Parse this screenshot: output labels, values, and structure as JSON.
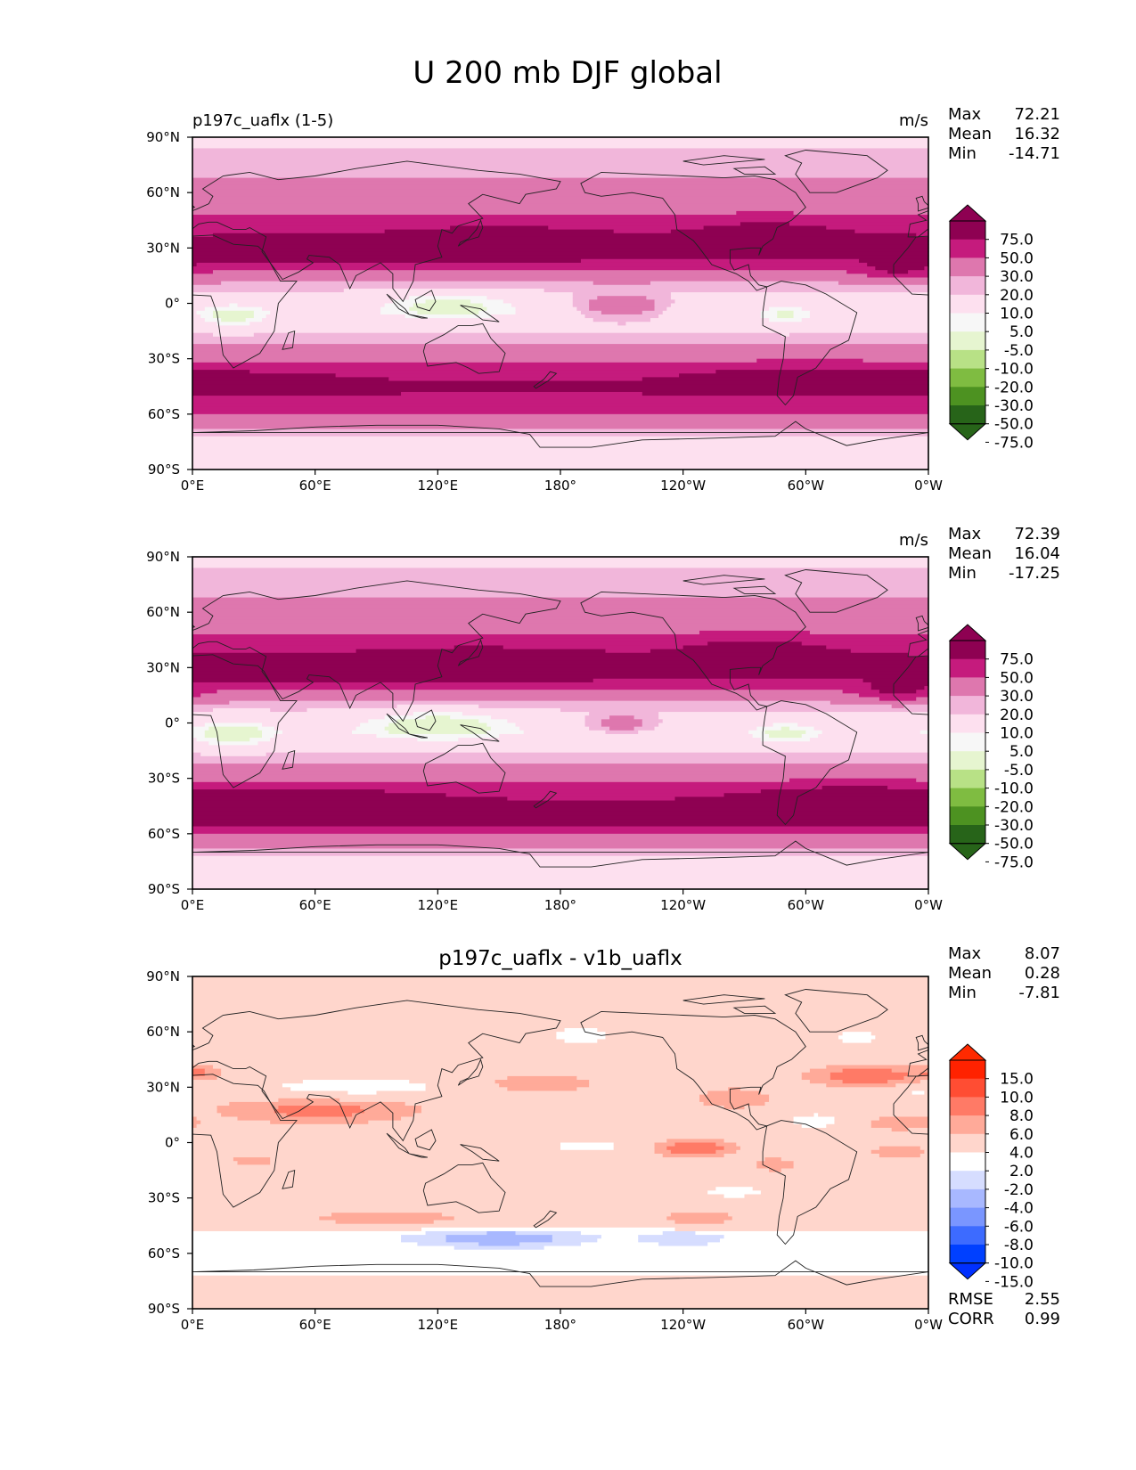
{
  "figure_title": "U 200 mb DJF global",
  "colors": {
    "field": [
      "#276419",
      "#4d9221",
      "#7fbc41",
      "#b8e186",
      "#e6f5d0",
      "#f7f7f7",
      "#fde0ef",
      "#f1b6da",
      "#de77ae",
      "#c51b7d",
      "#8e0152"
    ],
    "field_extend": {
      "under": "#276419",
      "over": "#8e0152"
    },
    "diff": [
      "#0040ff",
      "#3d6bff",
      "#7a96ff",
      "#a8b8ff",
      "#d6ddff",
      "#ffffff",
      "#ffd6cc",
      "#ffaa99",
      "#ff7a66",
      "#ff4d33",
      "#ff2200"
    ],
    "diff_extend": {
      "under": "#0030ff",
      "over": "#ff2a00"
    },
    "coast": "#222222"
  },
  "chart_data": [
    {
      "type": "heatmap",
      "panel": "test",
      "left_title": "p197c_uaflx (1-5)",
      "center_title": "",
      "units": "m/s",
      "stats": [
        {
          "label": "Max",
          "value": "72.21"
        },
        {
          "label": "Mean",
          "value": "16.32"
        },
        {
          "label": "Min",
          "value": "-14.71"
        }
      ],
      "colorbar": {
        "levels": [
          "-75.0",
          "-50.0",
          "-30.0",
          "-20.0",
          "-10.0",
          "-5.0",
          "5.0",
          "10.0",
          "20.0",
          "30.0",
          "50.0",
          "75.0"
        ],
        "level_values": [
          -75,
          -50,
          -30,
          -20,
          -10,
          -5,
          5,
          10,
          20,
          30,
          50,
          75
        ],
        "extend": "both"
      },
      "x_ticks": [
        "0°E",
        "60°E",
        "120°E",
        "180°",
        "120°W",
        "60°W",
        "0°W"
      ],
      "x_tick_values": [
        0,
        60,
        120,
        180,
        240,
        300,
        360
      ],
      "y_ticks": [
        "90°N",
        "60°N",
        "30°N",
        "0°",
        "30°S",
        "60°S",
        "90°S"
      ],
      "y_tick_values": [
        90,
        60,
        30,
        0,
        -30,
        -60,
        -90
      ],
      "xlim": [
        0,
        360
      ],
      "ylim": [
        -90,
        90
      ],
      "zonal_profile": [
        [
          -90,
          2
        ],
        [
          -75,
          3
        ],
        [
          -65,
          12
        ],
        [
          -55,
          26
        ],
        [
          -45,
          32
        ],
        [
          -35,
          22
        ],
        [
          -25,
          12
        ],
        [
          -15,
          4
        ],
        [
          -5,
          -2
        ],
        [
          5,
          3
        ],
        [
          15,
          14
        ],
        [
          25,
          30
        ],
        [
          32,
          36
        ],
        [
          40,
          26
        ],
        [
          50,
          18
        ],
        [
          60,
          12
        ],
        [
          75,
          8
        ],
        [
          90,
          3
        ]
      ],
      "features": [
        {
          "lon": 150,
          "lat": 32,
          "rlon": 48,
          "rlat": 8,
          "amp": 22
        },
        {
          "lon": 50,
          "lat": 27,
          "rlon": 35,
          "rlat": 6,
          "amp": 14
        },
        {
          "lon": 280,
          "lat": 35,
          "rlon": 35,
          "rlat": 9,
          "amp": 16
        },
        {
          "lon": 345,
          "lat": 18,
          "rlon": 20,
          "rlat": 6,
          "amp": 14
        },
        {
          "lon": 210,
          "lat": -2,
          "rlon": 22,
          "rlat": 7,
          "amp": 18
        },
        {
          "lon": 20,
          "lat": -7,
          "rlon": 15,
          "rlat": 6,
          "amp": -14
        },
        {
          "lon": 125,
          "lat": -1,
          "rlon": 30,
          "rlat": 7,
          "amp": -14
        },
        {
          "lon": 290,
          "lat": -7,
          "rlon": 12,
          "rlat": 6,
          "amp": -10
        },
        {
          "lon": 300,
          "lat": -40,
          "rlon": 60,
          "rlat": 7,
          "amp": 12
        },
        {
          "lon": 20,
          "lat": -42,
          "rlon": 60,
          "rlat": 6,
          "amp": 10
        }
      ]
    },
    {
      "type": "heatmap",
      "panel": "reference",
      "left_title": "",
      "center_title": "",
      "units": "m/s",
      "stats": [
        {
          "label": "Max",
          "value": "72.39"
        },
        {
          "label": "Mean",
          "value": "16.04"
        },
        {
          "label": "Min",
          "value": "-17.25"
        }
      ],
      "colorbar": {
        "levels": [
          "-75.0",
          "-50.0",
          "-30.0",
          "-20.0",
          "-10.0",
          "-5.0",
          "5.0",
          "10.0",
          "20.0",
          "30.0",
          "50.0",
          "75.0"
        ],
        "level_values": [
          -75,
          -50,
          -30,
          -20,
          -10,
          -5,
          5,
          10,
          20,
          30,
          50,
          75
        ],
        "extend": "both"
      },
      "x_ticks": [
        "0°E",
        "60°E",
        "120°E",
        "180°",
        "120°W",
        "60°W",
        "0°W"
      ],
      "x_tick_values": [
        0,
        60,
        120,
        180,
        240,
        300,
        360
      ],
      "y_ticks": [
        "90°N",
        "60°N",
        "30°N",
        "0°",
        "30°S",
        "60°S",
        "90°S"
      ],
      "y_tick_values": [
        90,
        60,
        30,
        0,
        -30,
        -60,
        -90
      ],
      "xlim": [
        0,
        360
      ],
      "ylim": [
        -90,
        90
      ],
      "zonal_profile": [
        [
          -90,
          2
        ],
        [
          -75,
          3
        ],
        [
          -65,
          12
        ],
        [
          -55,
          30
        ],
        [
          -45,
          34
        ],
        [
          -35,
          22
        ],
        [
          -25,
          12
        ],
        [
          -15,
          4
        ],
        [
          -5,
          -2
        ],
        [
          5,
          3
        ],
        [
          15,
          14
        ],
        [
          25,
          30
        ],
        [
          32,
          36
        ],
        [
          40,
          26
        ],
        [
          50,
          18
        ],
        [
          60,
          12
        ],
        [
          75,
          8
        ],
        [
          90,
          3
        ]
      ],
      "features": [
        {
          "lon": 140,
          "lat": 31,
          "rlon": 55,
          "rlat": 8,
          "amp": 24
        },
        {
          "lon": 45,
          "lat": 28,
          "rlon": 30,
          "rlat": 6,
          "amp": 16
        },
        {
          "lon": 275,
          "lat": 36,
          "rlon": 35,
          "rlat": 9,
          "amp": 18
        },
        {
          "lon": 345,
          "lat": 17,
          "rlon": 20,
          "rlat": 6,
          "amp": 16
        },
        {
          "lon": 210,
          "lat": -1,
          "rlon": 18,
          "rlat": 6,
          "amp": 14
        },
        {
          "lon": 20,
          "lat": -6,
          "rlon": 18,
          "rlat": 7,
          "amp": -16
        },
        {
          "lon": 120,
          "lat": -1,
          "rlon": 35,
          "rlat": 8,
          "amp": -16
        },
        {
          "lon": 290,
          "lat": -6,
          "rlon": 15,
          "rlat": 6,
          "amp": -12
        },
        {
          "lon": 320,
          "lat": -40,
          "rlon": 50,
          "rlat": 7,
          "amp": 14
        },
        {
          "lon": 60,
          "lat": -40,
          "rlon": 60,
          "rlat": 6,
          "amp": 10
        }
      ]
    },
    {
      "type": "heatmap",
      "panel": "difference",
      "left_title": "",
      "center_title": "p197c_uaflx - v1b_uaflx",
      "units": "",
      "stats": [
        {
          "label": "Max",
          "value": "8.07"
        },
        {
          "label": "Mean",
          "value": "0.28"
        },
        {
          "label": "Min",
          "value": "-7.81"
        }
      ],
      "bottom_stats": [
        {
          "label": "RMSE",
          "value": "2.55"
        },
        {
          "label": "CORR",
          "value": "0.99"
        }
      ],
      "colorbar": {
        "levels": [
          "-15.0",
          "-10.0",
          "-8.0",
          "-6.0",
          "-4.0",
          "-2.0",
          "2.0",
          "4.0",
          "6.0",
          "8.0",
          "10.0",
          "15.0"
        ],
        "level_values": [
          -15,
          -10,
          -8,
          -6,
          -4,
          -2,
          2,
          4,
          6,
          8,
          10,
          15
        ],
        "extend": "both"
      },
      "x_ticks": [
        "0°E",
        "60°E",
        "120°E",
        "180°",
        "120°W",
        "60°W",
        "0°W"
      ],
      "x_tick_values": [
        0,
        60,
        120,
        180,
        240,
        300,
        360
      ],
      "y_ticks": [
        "90°N",
        "60°N",
        "30°N",
        "0°",
        "30°S",
        "60°S",
        "90°S"
      ],
      "y_tick_values": [
        90,
        60,
        30,
        0,
        -30,
        -60,
        -90
      ],
      "xlim": [
        0,
        360
      ],
      "ylim": [
        -90,
        90
      ],
      "zonal_profile": [
        [
          -90,
          0
        ],
        [
          -72,
          -2
        ],
        [
          -60,
          -2.5
        ],
        [
          -50,
          -3
        ],
        [
          -40,
          0.5
        ],
        [
          -30,
          1
        ],
        [
          -20,
          0
        ],
        [
          0,
          0
        ],
        [
          20,
          1
        ],
        [
          30,
          0
        ],
        [
          90,
          0
        ]
      ],
      "features": [
        {
          "lon": 150,
          "lat": -52,
          "rlon": 40,
          "rlat": 5,
          "amp": -5
        },
        {
          "lon": 240,
          "lat": -52,
          "rlon": 20,
          "rlat": 4,
          "amp": -3
        },
        {
          "lon": 80,
          "lat": 30,
          "rlon": 45,
          "rlat": 5,
          "amp": -4
        },
        {
          "lon": 355,
          "lat": 28,
          "rlon": 10,
          "rlat": 4,
          "amp": -3
        },
        {
          "lon": 190,
          "lat": 58,
          "rlon": 20,
          "rlat": 6,
          "amp": -3
        },
        {
          "lon": 325,
          "lat": 57,
          "rlon": 15,
          "rlat": 5,
          "amp": -3
        },
        {
          "lon": 195,
          "lat": -2,
          "rlon": 25,
          "rlat": 4,
          "amp": -3
        },
        {
          "lon": 305,
          "lat": 12,
          "rlon": 18,
          "rlat": 5,
          "amp": -4
        },
        {
          "lon": 265,
          "lat": -27,
          "rlon": 20,
          "rlat": 4,
          "amp": -4
        },
        {
          "lon": 62,
          "lat": 17,
          "rlon": 45,
          "rlat": 7,
          "amp": 4
        },
        {
          "lon": 95,
          "lat": -42,
          "rlon": 40,
          "rlat": 4,
          "amp": 4
        },
        {
          "lon": 170,
          "lat": 32,
          "rlon": 30,
          "rlat": 5,
          "amp": 4
        },
        {
          "lon": 245,
          "lat": -3,
          "rlon": 22,
          "rlat": 5,
          "amp": 6
        },
        {
          "lon": 330,
          "lat": 36,
          "rlon": 30,
          "rlat": 6,
          "amp": 6
        },
        {
          "lon": 248,
          "lat": -42,
          "rlon": 20,
          "rlat": 4,
          "amp": 4
        },
        {
          "lon": 265,
          "lat": 25,
          "rlon": 20,
          "rlat": 6,
          "amp": 3
        },
        {
          "lon": 345,
          "lat": -5,
          "rlon": 20,
          "rlat": 5,
          "amp": 3
        },
        {
          "lon": 285,
          "lat": -12,
          "rlon": 15,
          "rlat": 5,
          "amp": 3
        },
        {
          "lon": 345,
          "lat": 10,
          "rlon": 20,
          "rlat": 4,
          "amp": 3
        },
        {
          "lon": 5,
          "lat": 38,
          "rlon": 10,
          "rlat": 5,
          "amp": 3
        },
        {
          "lon": 30,
          "lat": -10,
          "rlon": 20,
          "rlat": 5,
          "amp": 2.5
        },
        {
          "lon": 175,
          "lat": -80,
          "rlon": 30,
          "rlat": 4,
          "amp": 2.5
        }
      ]
    }
  ]
}
